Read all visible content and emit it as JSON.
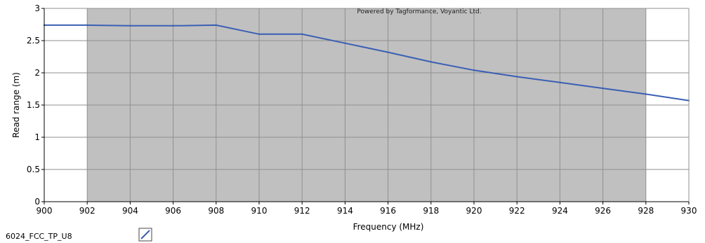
{
  "chart_data": {
    "type": "line",
    "watermark": "Powered by Tagformance, Voyantic Ltd.",
    "xlabel": "Frequency (MHz)",
    "ylabel": "Read range (m)",
    "xlim": [
      900,
      930
    ],
    "ylim": [
      0,
      3
    ],
    "x_ticks": [
      900,
      902,
      904,
      906,
      908,
      910,
      912,
      914,
      916,
      918,
      920,
      922,
      924,
      926,
      928,
      930
    ],
    "y_ticks": [
      0,
      0.5,
      1,
      1.5,
      2,
      2.5,
      3
    ],
    "y_tick_labels": [
      "0",
      "0.5",
      "1",
      "1.5",
      "2",
      "2.5",
      "3"
    ],
    "shaded_band": [
      902,
      928
    ],
    "grid": true,
    "legend_position": "bottom-left",
    "colors": {
      "line": "#3a5fb4",
      "band": "#c0c0c0",
      "grid": "#8f8f8f"
    },
    "series": [
      {
        "name": "6024_FCC_TP_U8",
        "x": [
          900,
          902,
          904,
          906,
          908,
          910,
          912,
          914,
          916,
          918,
          920,
          922,
          924,
          926,
          928,
          930
        ],
        "y": [
          2.74,
          2.74,
          2.73,
          2.73,
          2.74,
          2.6,
          2.6,
          2.46,
          2.32,
          2.17,
          2.04,
          1.94,
          1.85,
          1.76,
          1.67,
          1.57
        ]
      }
    ]
  }
}
